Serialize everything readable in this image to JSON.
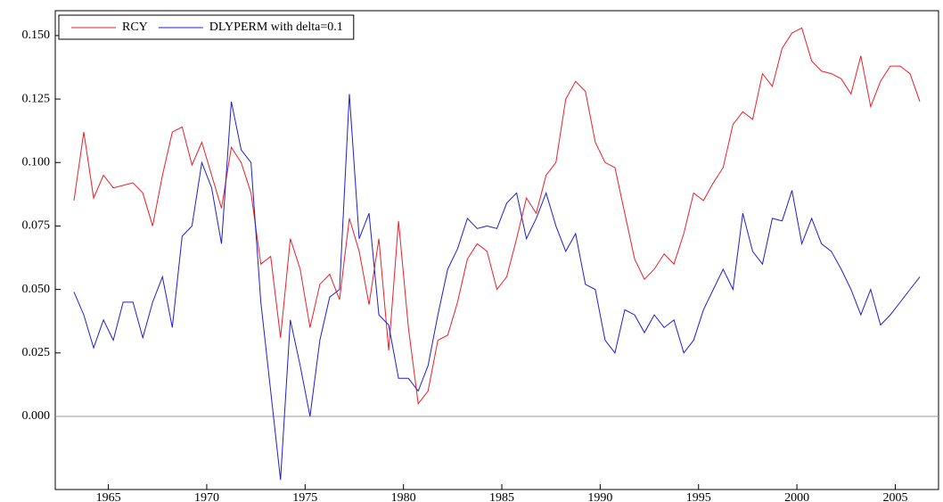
{
  "chart_data": {
    "type": "line",
    "legend": "top-left",
    "zero_line": true,
    "x": [
      1963.25,
      1963.75,
      1964.25,
      1964.75,
      1965.25,
      1965.75,
      1966.25,
      1966.75,
      1967.25,
      1967.75,
      1968.25,
      1968.75,
      1969.25,
      1969.75,
      1970.25,
      1970.75,
      1971.25,
      1971.75,
      1972.25,
      1972.75,
      1973.25,
      1973.75,
      1974.25,
      1974.75,
      1975.25,
      1975.75,
      1976.25,
      1976.75,
      1977.25,
      1977.75,
      1978.25,
      1978.75,
      1979.25,
      1979.75,
      1980.25,
      1980.75,
      1981.25,
      1981.75,
      1982.25,
      1982.75,
      1983.25,
      1983.75,
      1984.25,
      1984.75,
      1985.25,
      1985.75,
      1986.25,
      1986.75,
      1987.25,
      1987.75,
      1988.25,
      1988.75,
      1989.25,
      1989.75,
      1990.25,
      1990.75,
      1991.25,
      1991.75,
      1992.25,
      1992.75,
      1993.25,
      1993.75,
      1994.25,
      1994.75,
      1995.25,
      1995.75,
      1996.25,
      1996.75,
      1997.25,
      1997.75,
      1998.25,
      1998.75,
      1999.25,
      1999.75,
      2000.25,
      2000.75,
      2001.25,
      2001.75,
      2002.25,
      2002.75,
      2003.25,
      2003.75,
      2004.25,
      2004.75,
      2005.25,
      2005.75,
      2006.25
    ],
    "series": [
      {
        "name": "RCY",
        "color": "#e8202a",
        "values": [
          0.085,
          0.112,
          0.086,
          0.095,
          0.09,
          0.091,
          0.092,
          0.088,
          0.075,
          0.095,
          0.112,
          0.114,
          0.099,
          0.108,
          0.095,
          0.082,
          0.106,
          0.1,
          0.088,
          0.06,
          0.063,
          0.031,
          0.07,
          0.058,
          0.035,
          0.052,
          0.056,
          0.046,
          0.078,
          0.065,
          0.044,
          0.07,
          0.026,
          0.077,
          0.035,
          0.005,
          0.01,
          0.03,
          0.032,
          0.045,
          0.062,
          0.068,
          0.065,
          0.05,
          0.055,
          0.07,
          0.086,
          0.08,
          0.095,
          0.1,
          0.125,
          0.132,
          0.128,
          0.108,
          0.1,
          0.098,
          0.08,
          0.062,
          0.054,
          0.058,
          0.064,
          0.06,
          0.072,
          0.088,
          0.085,
          0.092,
          0.098,
          0.115,
          0.12,
          0.117,
          0.135,
          0.13,
          0.145,
          0.151,
          0.153,
          0.14,
          0.136,
          0.135,
          0.133,
          0.127,
          0.142,
          0.122,
          0.132,
          0.138,
          0.138,
          0.135,
          0.124
        ]
      },
      {
        "name": "DLYPERM with delta=0.1",
        "color": "#1f1fd0",
        "values": [
          0.049,
          0.04,
          0.027,
          0.038,
          0.03,
          0.045,
          0.045,
          0.031,
          0.045,
          0.055,
          0.035,
          0.071,
          0.075,
          0.1,
          0.09,
          0.068,
          0.124,
          0.105,
          0.1,
          0.045,
          0.01,
          -0.025,
          0.038,
          0.02,
          0.0,
          0.03,
          0.047,
          0.05,
          0.127,
          0.07,
          0.08,
          0.04,
          0.036,
          0.015,
          0.015,
          0.01,
          0.02,
          0.04,
          0.058,
          0.066,
          0.078,
          0.074,
          0.075,
          0.074,
          0.084,
          0.088,
          0.07,
          0.078,
          0.088,
          0.075,
          0.065,
          0.072,
          0.052,
          0.05,
          0.03,
          0.025,
          0.042,
          0.04,
          0.033,
          0.04,
          0.035,
          0.038,
          0.025,
          0.03,
          0.042,
          0.05,
          0.058,
          0.05,
          0.08,
          0.065,
          0.06,
          0.078,
          0.077,
          0.089,
          0.068,
          0.078,
          0.068,
          0.065,
          0.058,
          0.05,
          0.04,
          0.05,
          0.036,
          0.04,
          0.045,
          0.05,
          0.055
        ]
      }
    ],
    "xlim": [
      1962.3,
      2007.2
    ],
    "xticks": [
      1965,
      1970,
      1975,
      1980,
      1985,
      1990,
      1995,
      2000,
      2005
    ],
    "ylim": [
      -0.0288,
      0.1598
    ],
    "yticks": [
      {
        "value": 0,
        "label": "0.000"
      },
      0.025,
      {
        "value": 0.05,
        "label": "0.050"
      },
      0.075,
      {
        "value": 0.1,
        "label": "0.100"
      },
      0.125,
      {
        "value": 0.15,
        "label": "0.150"
      }
    ]
  }
}
